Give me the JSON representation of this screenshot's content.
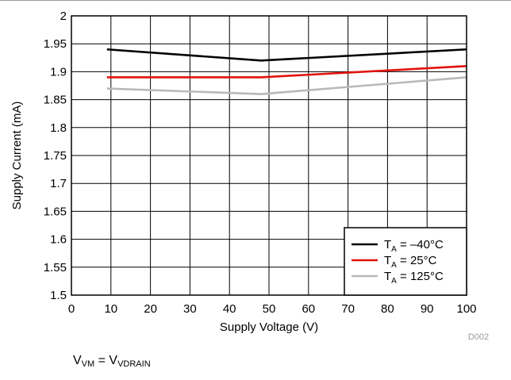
{
  "chart_data": {
    "type": "line",
    "xlabel": "Supply Voltage (V)",
    "ylabel": "Supply Current (mA)",
    "xlim": [
      0,
      100
    ],
    "ylim": [
      1.5,
      2
    ],
    "xticks": [
      0,
      10,
      20,
      30,
      40,
      50,
      60,
      70,
      80,
      90,
      100
    ],
    "yticks": [
      1.5,
      1.55,
      1.6,
      1.65,
      1.7,
      1.75,
      1.8,
      1.85,
      1.9,
      1.95,
      2
    ],
    "xtick_labels": [
      "0",
      "10",
      "20",
      "30",
      "40",
      "50",
      "60",
      "70",
      "80",
      "90",
      "100"
    ],
    "ytick_labels": [
      "1.5",
      "1.55",
      "1.6",
      "1.65",
      "1.7",
      "1.75",
      "1.8",
      "1.85",
      "1.9",
      "1.95",
      "2"
    ],
    "grid": true,
    "legend_position": "bottom-right",
    "series": [
      {
        "name_main": "T",
        "name_sub": "A",
        "name_rest": " = –40°C",
        "color": "#000000",
        "x": [
          9,
          48,
          100
        ],
        "y": [
          1.94,
          1.92,
          1.94
        ]
      },
      {
        "name_main": "T",
        "name_sub": "A",
        "name_rest": " = 25°C",
        "color": "#e3120b",
        "x": [
          9,
          48,
          100
        ],
        "y": [
          1.89,
          1.89,
          1.91
        ]
      },
      {
        "name_main": "T",
        "name_sub": "A",
        "name_rest": " = 125°C",
        "color": "#b9b9b9",
        "x": [
          9,
          48,
          100
        ],
        "y": [
          1.87,
          1.86,
          1.89
        ]
      }
    ],
    "figure_id": "D002"
  },
  "condition": {
    "lhs_main": "V",
    "lhs_sub": "VM",
    "equals": " = ",
    "rhs_main": "V",
    "rhs_sub": "VDRAIN"
  }
}
